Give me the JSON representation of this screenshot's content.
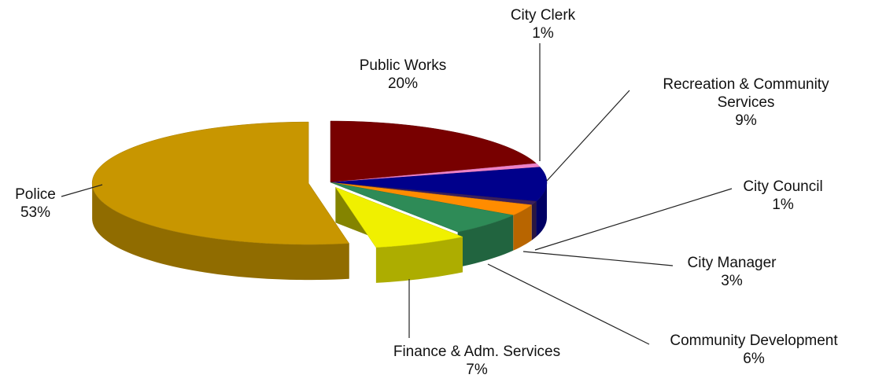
{
  "chart_data": {
    "type": "pie",
    "categories": [
      "Public Works",
      "City Clerk",
      "Recreation & Community Services",
      "City Council",
      "City Manager",
      "Community Development",
      "Finance & Adm. Services",
      "Police"
    ],
    "values": [
      20,
      1,
      9,
      1,
      3,
      6,
      7,
      53
    ],
    "value_labels": [
      "20%",
      "1%",
      "9%",
      "1%",
      "3%",
      "6%",
      "7%",
      "53%"
    ],
    "colors": [
      "#780000",
      "#ee82c8",
      "#00008b",
      "#3a1f5c",
      "#ff8c00",
      "#2e8b57",
      "#f0f000",
      "#c89600"
    ]
  }
}
